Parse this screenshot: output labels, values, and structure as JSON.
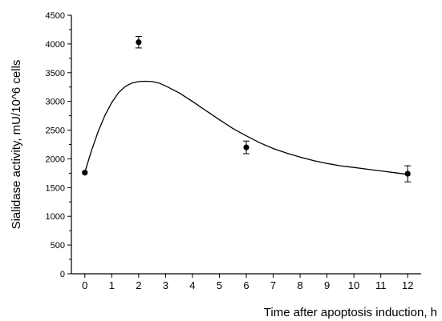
{
  "chart_data": {
    "type": "scatter",
    "title": "",
    "xlabel": "Time after apoptosis induction, h",
    "ylabel": "Sialidase activity, mU/10^6 cells",
    "xlim": [
      -0.5,
      12.5
    ],
    "ylim": [
      0,
      4500
    ],
    "x_ticks": [
      0,
      1,
      2,
      3,
      4,
      5,
      6,
      7,
      8,
      9,
      10,
      11,
      12
    ],
    "y_ticks": [
      0,
      500,
      1000,
      1500,
      2000,
      2500,
      3000,
      3500,
      4000,
      4500
    ],
    "grid": false,
    "legend": "none",
    "series": [
      {
        "kind": "points",
        "x": [
          0,
          2,
          6,
          12
        ],
        "y": [
          1760,
          4030,
          2200,
          1740
        ],
        "error": [
          0,
          100,
          110,
          140
        ]
      },
      {
        "kind": "fit-curve",
        "x": [
          0,
          0.25,
          0.5,
          0.75,
          1,
          1.25,
          1.5,
          1.75,
          2,
          2.25,
          2.5,
          2.75,
          3,
          3.5,
          4,
          4.5,
          5,
          5.5,
          6,
          6.5,
          7,
          7.5,
          8,
          8.5,
          9,
          9.5,
          10,
          10.5,
          11,
          11.5,
          12
        ],
        "y": [
          1770,
          2150,
          2480,
          2760,
          2980,
          3150,
          3260,
          3320,
          3345,
          3350,
          3345,
          3320,
          3270,
          3150,
          3000,
          2840,
          2680,
          2530,
          2400,
          2280,
          2180,
          2100,
          2030,
          1970,
          1920,
          1880,
          1850,
          1820,
          1790,
          1760,
          1730
        ]
      }
    ]
  }
}
